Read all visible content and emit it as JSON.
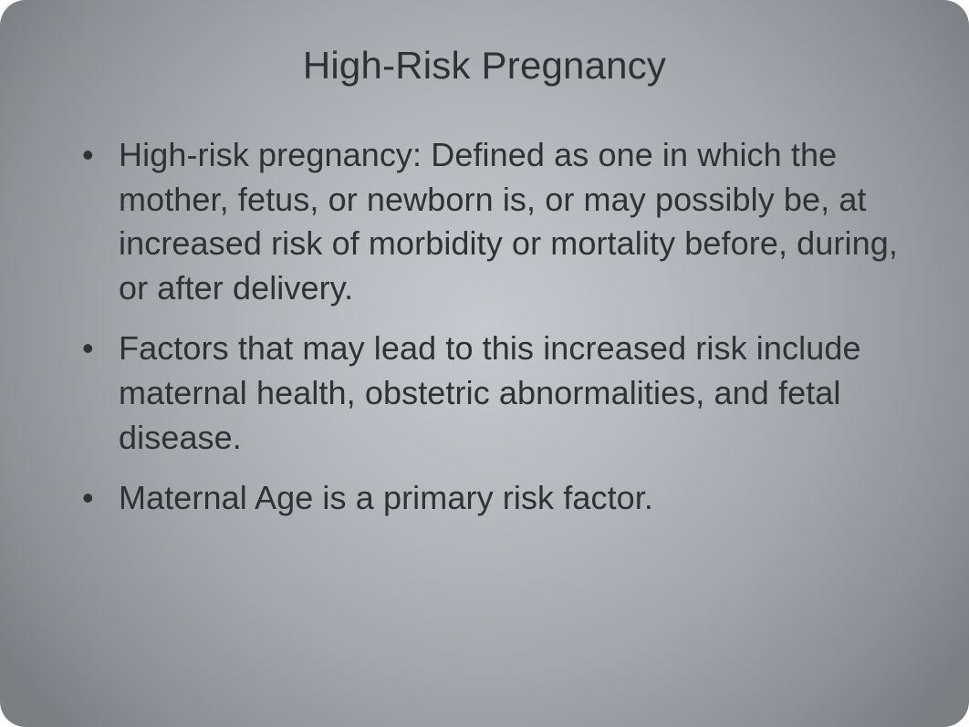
{
  "slide": {
    "title": "High-Risk Pregnancy",
    "bullets": [
      "High-risk pregnancy: Defined as one in which the mother, fetus, or newborn is, or may possibly be, at increased risk of morbidity or mortality before, during, or after delivery.",
      "Factors that may lead to this increased risk include maternal health, obstetric abnormalities, and fetal disease.",
      "Maternal Age is a primary risk factor."
    ],
    "title_fontsize": 42,
    "body_fontsize": 36,
    "text_color": "#2e3232",
    "background_gradient": {
      "type": "radial",
      "center_color": "#c5cacf",
      "edge_color": "#7a7f84"
    },
    "corner_radius": 28
  }
}
